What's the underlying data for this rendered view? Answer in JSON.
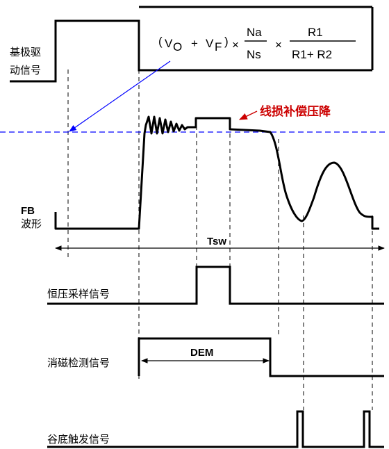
{
  "labels": {
    "base_drive_line1": "基极驱",
    "base_drive_line2": "动信号",
    "fb_line1": "FB",
    "fb_line2": "波形",
    "tsw": "Tsw",
    "cv_sample": "恒压采样信号",
    "demag": "消磁检测信号",
    "dem": "DEM",
    "valley": "谷底触发信号",
    "line_loss": "线损补偿压降"
  },
  "formula": {
    "open_paren": "(",
    "vo": "V",
    "vo_sub": "O",
    "plus": "+",
    "vf": "V",
    "vf_sub": "F",
    "close_paren": ")",
    "times1": "×",
    "na": "Na",
    "ns": "Ns",
    "times2": "×",
    "r1": "R1",
    "r1_plus_r2": "R1+  R2"
  },
  "colors": {
    "waveform": "#000000",
    "reference_line": "#0000ff",
    "annotation": "#cc0000"
  }
}
